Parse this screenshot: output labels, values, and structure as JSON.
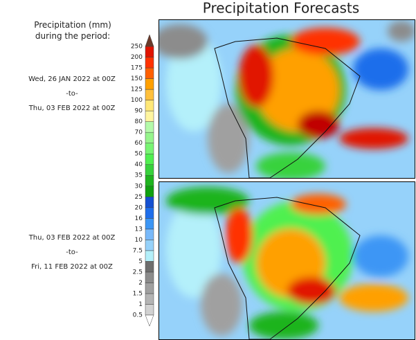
{
  "title": "Precipitation Forecasts",
  "legend_title": [
    "Precipitation (mm)",
    "during the period:"
  ],
  "periods": [
    {
      "start": "Wed, 26 JAN 2022 at 00Z",
      "sep": "-to-",
      "end": "Thu, 03 FEB 2022 at 00Z"
    },
    {
      "start": "Thu, 03 FEB 2022 at 00Z",
      "sep": "-to-",
      "end": "Fri, 11 FEB 2022 at 00Z"
    }
  ],
  "colorbar": {
    "levels": [
      0.5,
      1,
      1.5,
      2,
      2.5,
      5,
      7.5,
      10,
      13,
      16,
      20,
      25,
      30,
      35,
      40,
      50,
      60,
      70,
      80,
      90,
      100,
      125,
      150,
      175,
      200,
      250
    ],
    "under_color": "#ffffff",
    "over_color": "#6b3a2a",
    "colors": [
      "#d2d2d2",
      "#b4b4b4",
      "#a0a0a0",
      "#8c8c8c",
      "#6e6e6e",
      "#b4f0fa",
      "#96d2fa",
      "#78b9fa",
      "#3c96f5",
      "#1e6eeb",
      "#1450d2",
      "#0fa00f",
      "#1eb41e",
      "#37d23c",
      "#50f050",
      "#78f573",
      "#96f58c",
      "#b4faaa",
      "#fff5a0",
      "#ffe878",
      "#ffc03c",
      "#ffa000",
      "#ff6000",
      "#ff3200",
      "#e11400",
      "#c00000"
    ]
  }
}
